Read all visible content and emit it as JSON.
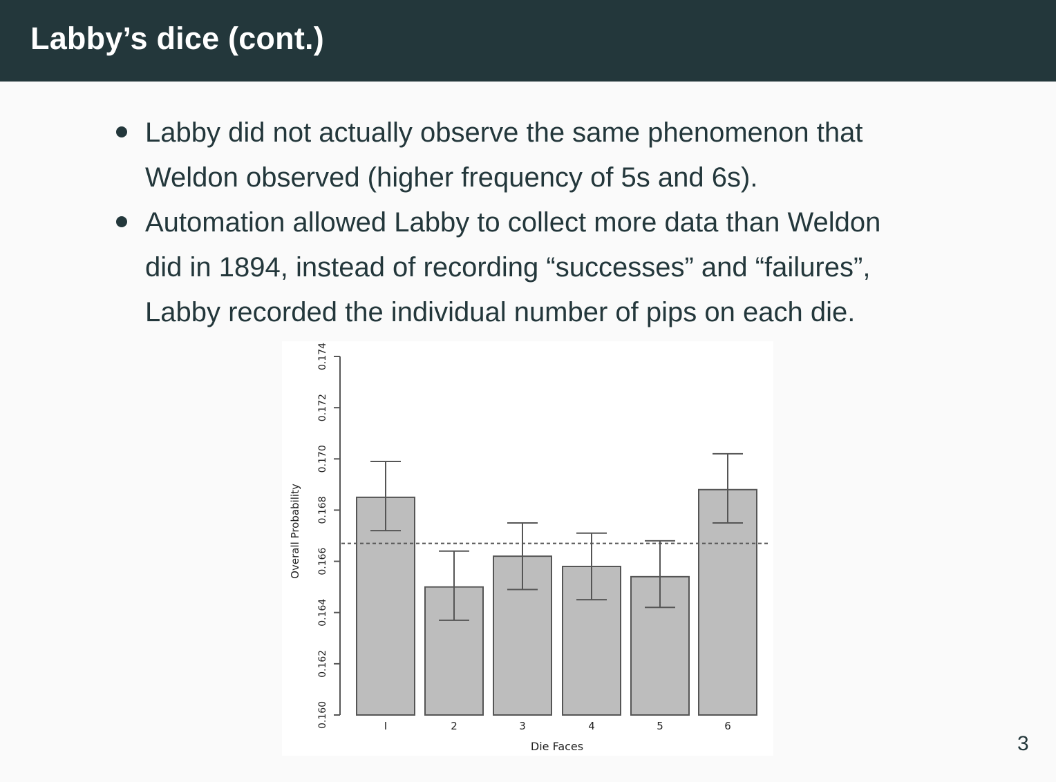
{
  "header": {
    "title": "Labby’s dice (cont.)"
  },
  "bullets": [
    {
      "lines": [
        "Labby did not actually observe the same phenomenon that",
        "Weldon observed (higher frequency of 5s and 6s)."
      ]
    },
    {
      "lines": [
        "Automation allowed Labby to collect more data than Weldon",
        "did in 1894, instead of recording “successes” and “failures”,",
        "Labby recorded the individual number of pips on each die."
      ]
    }
  ],
  "chart_data": {
    "type": "bar",
    "categories": [
      "I",
      "2",
      "3",
      "4",
      "5",
      "6"
    ],
    "values": [
      0.1685,
      0.165,
      0.1662,
      0.1658,
      0.1654,
      0.1688
    ],
    "error_low": [
      0.1672,
      0.1637,
      0.1649,
      0.1645,
      0.1642,
      0.1675
    ],
    "error_high": [
      0.1699,
      0.1664,
      0.1675,
      0.1671,
      0.1668,
      0.1702
    ],
    "reference_line": 0.1667,
    "xlabel": "Die Faces",
    "ylabel": "Overall Probability",
    "ylim": [
      0.16,
      0.174
    ],
    "yticks": [
      "0.160",
      "0.162",
      "0.164",
      "0.166",
      "0.168",
      "0.170",
      "0.172",
      "0.174"
    ],
    "ytick_values": [
      0.16,
      0.162,
      0.164,
      0.166,
      0.168,
      0.17,
      0.172,
      0.174
    ],
    "bar_color": "#bdbdbd",
    "grid": false
  },
  "page": {
    "number": "3"
  }
}
